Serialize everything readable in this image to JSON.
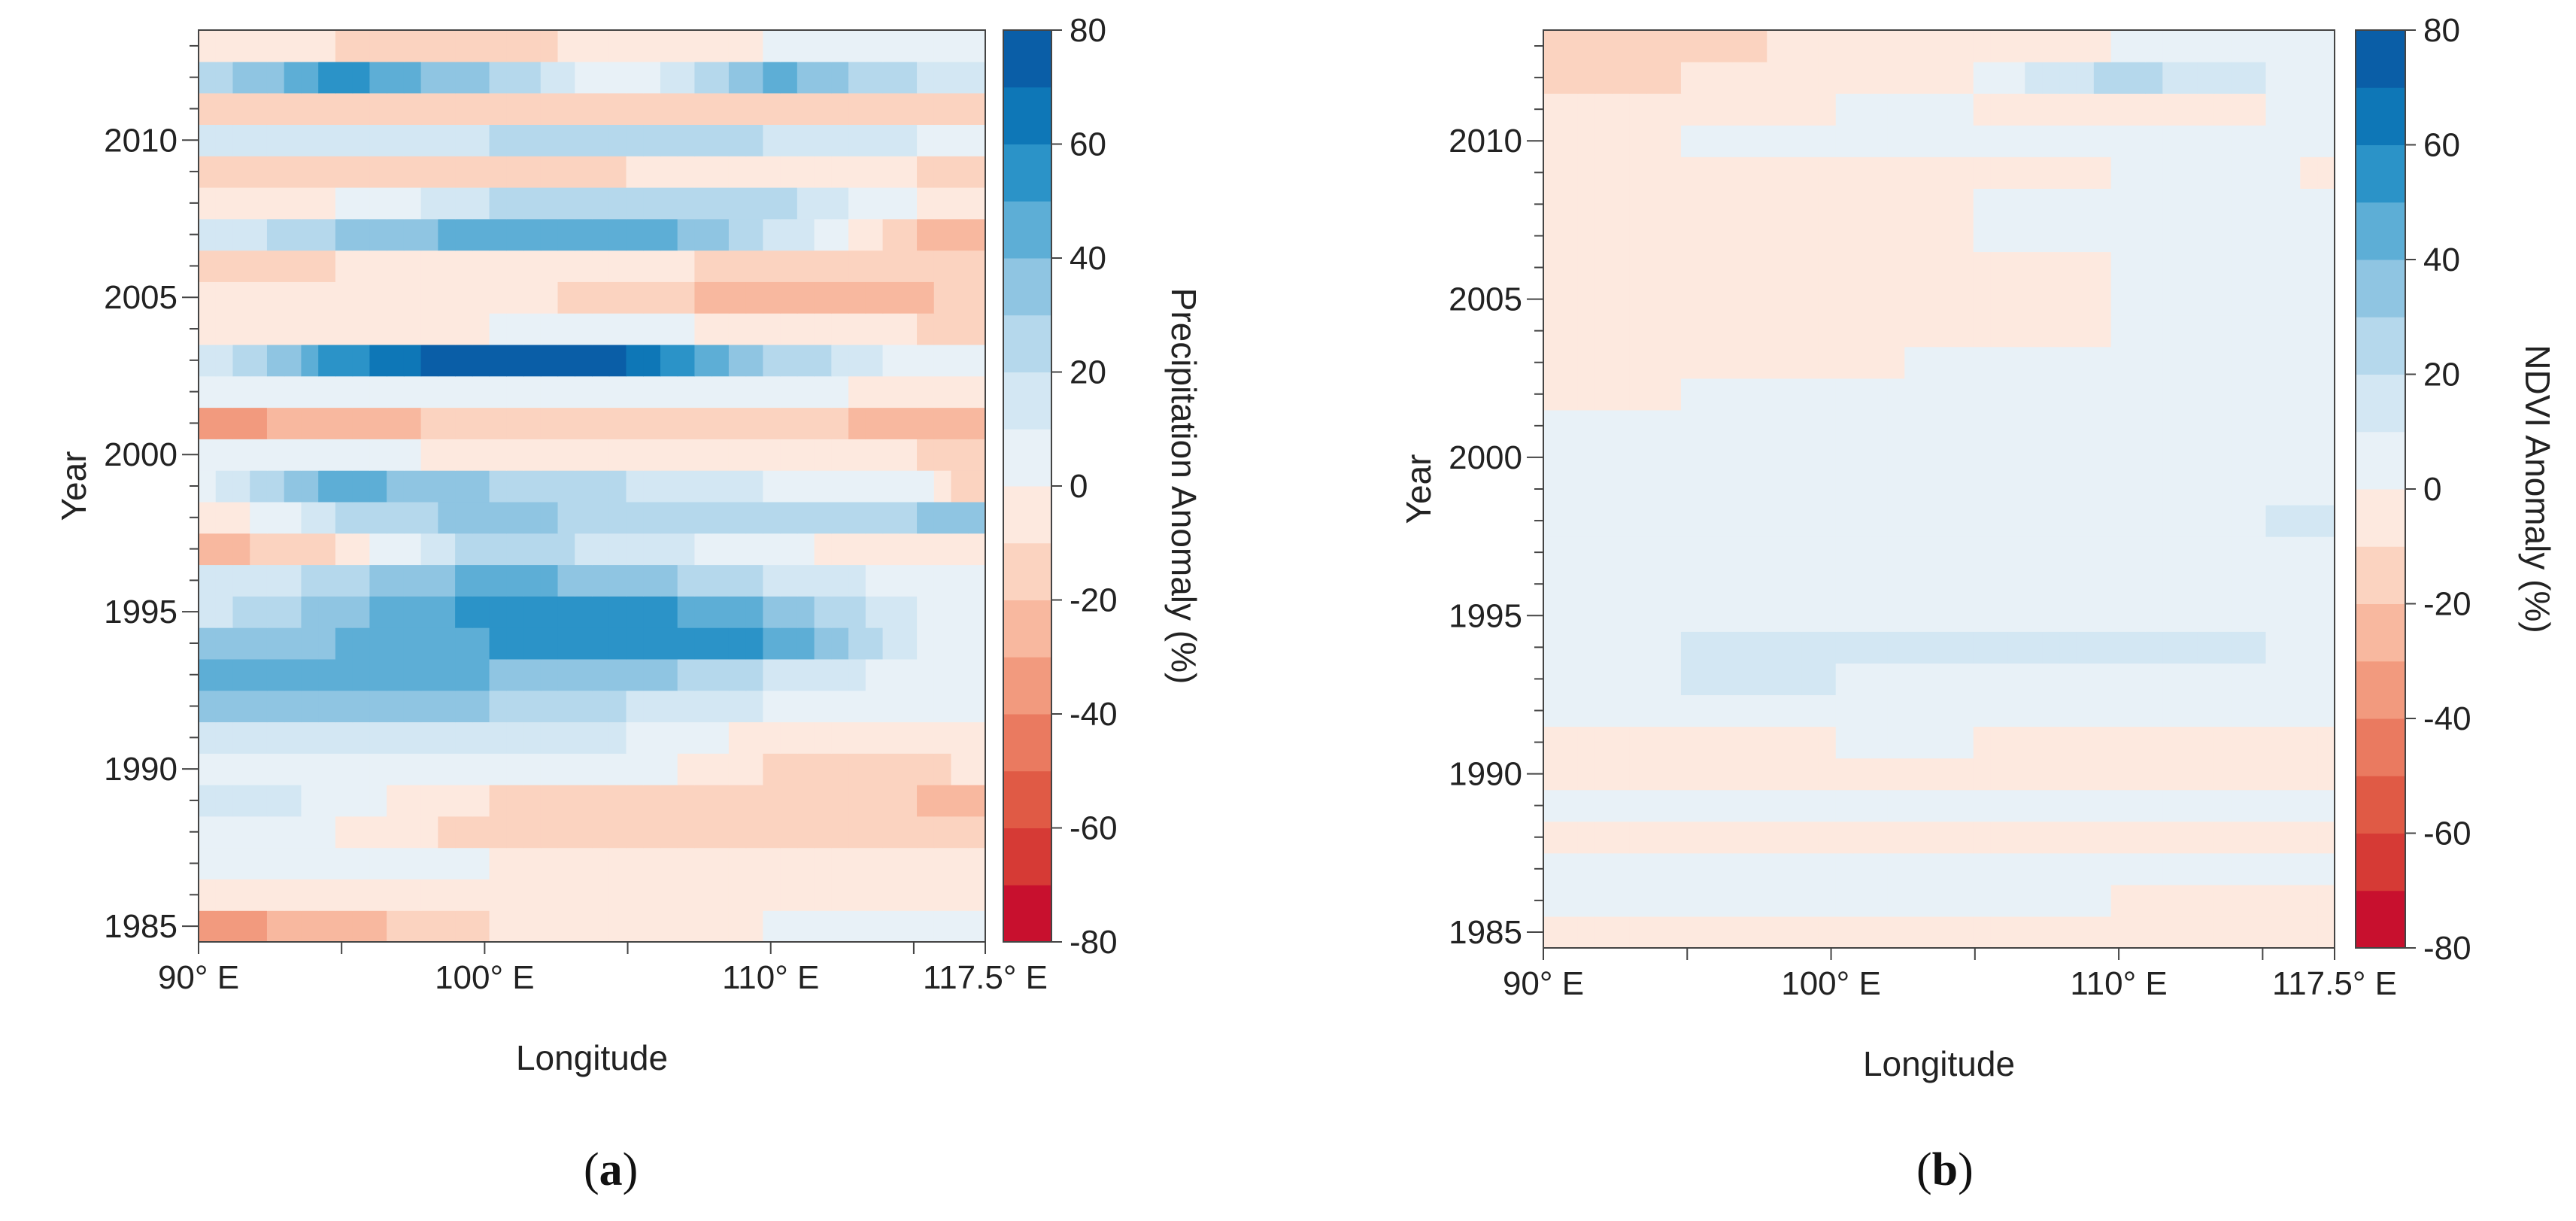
{
  "chart_data": [
    {
      "type": "heatmap",
      "panel_label": "a",
      "xlabel": "Longitude",
      "ylabel": "Year",
      "colorbar_label": "Precipitation   Anomaly (%)",
      "xlim": [
        90,
        117.5
      ],
      "ylim": [
        1984.5,
        2013.5
      ],
      "x_ticks": [
        {
          "value": 90,
          "label": "90° E"
        },
        {
          "value": 100,
          "label": "100° E"
        },
        {
          "value": 110,
          "label": "110° E"
        },
        {
          "value": 117.5,
          "label": "117.5° E"
        }
      ],
      "y_ticks": [
        {
          "value": 1985,
          "label": "1985"
        },
        {
          "value": 1990,
          "label": "1990"
        },
        {
          "value": 1995,
          "label": "1995"
        },
        {
          "value": 2000,
          "label": "2000"
        },
        {
          "value": 2005,
          "label": "2005"
        },
        {
          "value": 2010,
          "label": "2010"
        }
      ],
      "colorbar": {
        "min": -80,
        "max": 80,
        "step": 10,
        "tick_labels": [
          "80",
          "60",
          "40",
          "20",
          "0",
          "-20",
          "-40",
          "-60",
          "-80"
        ],
        "tick_values": [
          80,
          60,
          40,
          20,
          0,
          -20,
          -40,
          -60,
          -80
        ]
      },
      "x": [
        90,
        95,
        100,
        105,
        110,
        115,
        117.5
      ],
      "years": [
        1985,
        1986,
        1987,
        1988,
        1989,
        1990,
        1991,
        1992,
        1993,
        1994,
        1995,
        1996,
        1997,
        1998,
        1999,
        2000,
        2001,
        2002,
        2003,
        2004,
        2005,
        2006,
        2007,
        2008,
        2009,
        2010,
        2011,
        2012,
        2013
      ],
      "values": [
        [
          -35,
          -25,
          -10,
          -5,
          0,
          0,
          0
        ],
        [
          -5,
          -5,
          -5,
          -8,
          -8,
          -5,
          -5
        ],
        [
          0,
          0,
          0,
          -5,
          -8,
          -8,
          -5
        ],
        [
          0,
          0,
          -15,
          -20,
          -20,
          -20,
          -10
        ],
        [
          20,
          5,
          -10,
          -15,
          -10,
          -20,
          -25
        ],
        [
          0,
          5,
          5,
          5,
          -10,
          -15,
          -5
        ],
        [
          10,
          10,
          10,
          10,
          -5,
          -10,
          -5
        ],
        [
          30,
          30,
          30,
          20,
          10,
          0,
          5
        ],
        [
          40,
          50,
          40,
          35,
          20,
          5,
          5
        ],
        [
          30,
          40,
          50,
          60,
          50,
          10,
          5
        ],
        [
          15,
          35,
          55,
          55,
          40,
          10,
          0
        ],
        [
          10,
          25,
          45,
          35,
          20,
          5,
          0
        ],
        [
          -25,
          -10,
          30,
          15,
          5,
          -10,
          -10
        ],
        [
          -10,
          20,
          35,
          25,
          20,
          30,
          40
        ],
        [
          5,
          45,
          30,
          20,
          10,
          5,
          -20
        ],
        [
          5,
          5,
          -5,
          -5,
          0,
          -10,
          -15
        ],
        [
          -35,
          -25,
          -15,
          -10,
          -15,
          -25,
          -25
        ],
        [
          5,
          5,
          5,
          5,
          5,
          -5,
          -5
        ],
        [
          10,
          55,
          80,
          70,
          30,
          5,
          0
        ],
        [
          -10,
          -5,
          0,
          5,
          -5,
          -10,
          -15
        ],
        [
          0,
          -5,
          -5,
          -15,
          -25,
          -25,
          -10
        ],
        [
          -15,
          -10,
          -5,
          -5,
          -15,
          -20,
          -15
        ],
        [
          10,
          30,
          45,
          50,
          20,
          -20,
          -25
        ],
        [
          -5,
          0,
          20,
          30,
          25,
          0,
          -5
        ],
        [
          -15,
          -20,
          -15,
          -10,
          -5,
          -10,
          -15
        ],
        [
          10,
          15,
          20,
          25,
          20,
          10,
          5
        ],
        [
          -20,
          -10,
          -15,
          -10,
          -15,
          -20,
          -15
        ],
        [
          20,
          55,
          30,
          0,
          45,
          20,
          15
        ],
        [
          -10,
          -10,
          -15,
          -5,
          0,
          5,
          10
        ]
      ]
    },
    {
      "type": "heatmap",
      "panel_label": "b",
      "xlabel": "Longitude",
      "ylabel": "Year",
      "colorbar_label": "NDVI   Anomaly (%)",
      "xlim": [
        90,
        117.5
      ],
      "ylim": [
        1984.5,
        2013.5
      ],
      "x_ticks": [
        {
          "value": 90,
          "label": "90° E"
        },
        {
          "value": 100,
          "label": "100° E"
        },
        {
          "value": 110,
          "label": "110° E"
        },
        {
          "value": 117.5,
          "label": "117.5° E"
        }
      ],
      "y_ticks": [
        {
          "value": 1985,
          "label": "1985"
        },
        {
          "value": 1990,
          "label": "1990"
        },
        {
          "value": 1995,
          "label": "1995"
        },
        {
          "value": 2000,
          "label": "2000"
        },
        {
          "value": 2005,
          "label": "2005"
        },
        {
          "value": 2010,
          "label": "2010"
        }
      ],
      "colorbar": {
        "min": -80,
        "max": 80,
        "step": 10,
        "tick_labels": [
          "80",
          "60",
          "40",
          "20",
          "0",
          "-20",
          "-40",
          "-60",
          "-80"
        ],
        "tick_values": [
          80,
          60,
          40,
          20,
          0,
          -20,
          -40,
          -60,
          -80
        ]
      },
      "x": [
        90,
        95,
        100,
        105,
        110,
        115,
        117.5
      ],
      "years": [
        1985,
        1986,
        1987,
        1988,
        1989,
        1990,
        1991,
        1992,
        1993,
        1994,
        1995,
        1996,
        1997,
        1998,
        1999,
        2000,
        2001,
        2002,
        2003,
        2004,
        2005,
        2006,
        2007,
        2008,
        2009,
        2010,
        2011,
        2012,
        2013
      ],
      "values": [
        [
          -5,
          -5,
          -5,
          0,
          -5,
          -5,
          -5
        ],
        [
          0,
          0,
          0,
          5,
          0,
          -5,
          -5
        ],
        [
          5,
          5,
          5,
          5,
          0,
          5,
          5
        ],
        [
          -5,
          -5,
          -5,
          -5,
          -5,
          -5,
          -5
        ],
        [
          0,
          0,
          0,
          0,
          0,
          0,
          0
        ],
        [
          -5,
          -5,
          -5,
          -5,
          -5,
          -5,
          -5
        ],
        [
          0,
          -5,
          0,
          0,
          -5,
          -5,
          0
        ],
        [
          0,
          0,
          5,
          0,
          0,
          0,
          5
        ],
        [
          0,
          10,
          10,
          5,
          5,
          5,
          0
        ],
        [
          0,
          10,
          10,
          15,
          10,
          10,
          0
        ],
        [
          5,
          5,
          5,
          5,
          5,
          5,
          0
        ],
        [
          0,
          0,
          0,
          0,
          0,
          0,
          0
        ],
        [
          5,
          5,
          5,
          5,
          5,
          5,
          5
        ],
        [
          5,
          5,
          5,
          10,
          5,
          10,
          10
        ],
        [
          5,
          5,
          5,
          5,
          5,
          5,
          5
        ],
        [
          0,
          5,
          5,
          5,
          5,
          5,
          5
        ],
        [
          0,
          0,
          5,
          5,
          5,
          5,
          5
        ],
        [
          -5,
          0,
          5,
          10,
          5,
          5,
          5
        ],
        [
          -10,
          -5,
          -5,
          5,
          10,
          5,
          5
        ],
        [
          -10,
          -10,
          -10,
          -5,
          0,
          0,
          5
        ],
        [
          -10,
          -10,
          -10,
          -10,
          0,
          0,
          0
        ],
        [
          -10,
          -10,
          -5,
          -5,
          0,
          5,
          5
        ],
        [
          -10,
          -10,
          -5,
          0,
          0,
          5,
          0
        ],
        [
          -10,
          -5,
          -5,
          0,
          5,
          0,
          0
        ],
        [
          -5,
          -5,
          -5,
          -5,
          0,
          5,
          -5
        ],
        [
          -5,
          0,
          0,
          0,
          0,
          10,
          0
        ],
        [
          -10,
          -5,
          0,
          0,
          -5,
          0,
          0
        ],
        [
          -20,
          -10,
          -5,
          0,
          25,
          10,
          5
        ],
        [
          -15,
          -15,
          -5,
          -5,
          0,
          5,
          5
        ]
      ]
    }
  ]
}
